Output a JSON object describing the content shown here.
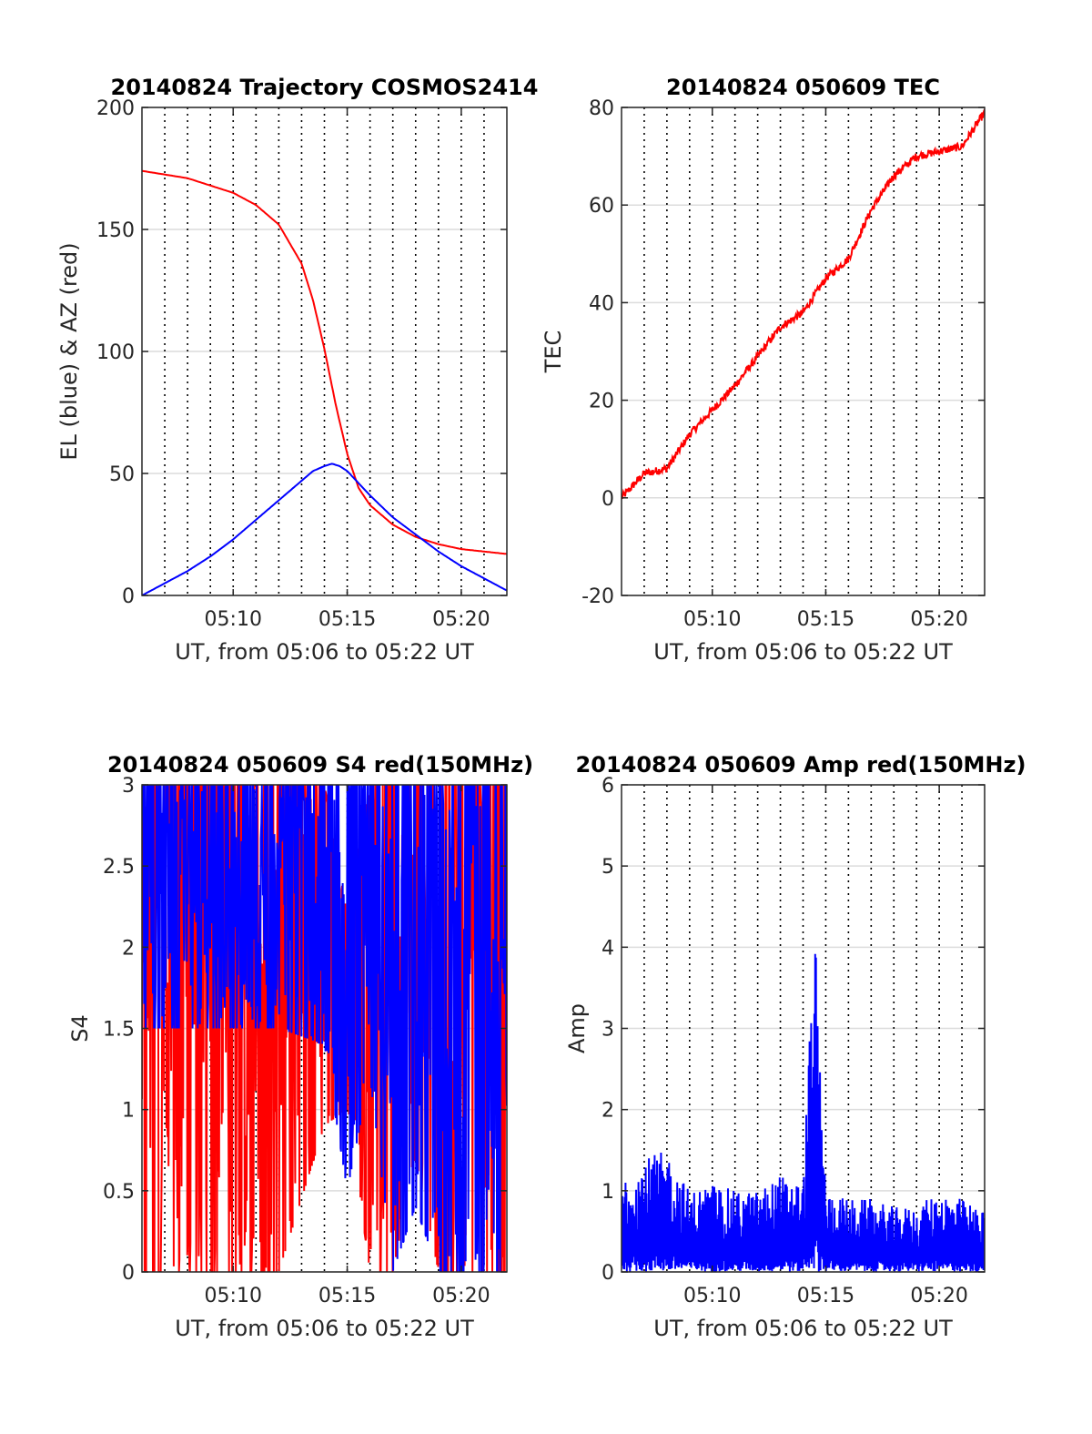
{
  "chart_data": [
    {
      "type": "line",
      "title": "20140824 Trajectory COSMOS2414",
      "xlabel": "UT, from 05:06 to 05:22 UT",
      "ylabel": "EL (blue) & AZ (red)",
      "xlim": [
        "05:06",
        "05:22"
      ],
      "ylim": [
        0,
        200
      ],
      "xticks": [
        "05:10",
        "05:15",
        "05:20"
      ],
      "yticks": [
        "0",
        "50",
        "100",
        "150",
        "200"
      ],
      "grid": "horizontal solid, vertical dotted each 1 min",
      "series": [
        {
          "color": "#ff0000",
          "x": [
            "05:06",
            "05:08",
            "05:10",
            "05:11",
            "05:12",
            "05:13",
            "05:13:30",
            "05:14",
            "05:14:30",
            "05:15",
            "05:15:30",
            "05:16",
            "05:17",
            "05:18",
            "05:19",
            "05:20",
            "05:21",
            "05:22"
          ],
          "values": [
            174,
            171,
            165,
            160,
            152,
            136,
            121,
            101,
            78,
            58,
            44,
            37,
            29,
            24,
            21,
            19,
            18,
            17
          ]
        },
        {
          "color": "#0000ff",
          "x": [
            "05:06",
            "05:07",
            "05:08",
            "05:09",
            "05:10",
            "05:11",
            "05:12",
            "05:13",
            "05:13:30",
            "05:14",
            "05:14:20",
            "05:14:40",
            "05:15",
            "05:15:30",
            "05:16",
            "05:17",
            "05:18",
            "05:19",
            "05:20",
            "05:21",
            "05:22"
          ],
          "values": [
            0,
            5,
            10,
            16,
            23,
            31,
            39,
            47,
            51,
            53,
            54,
            53,
            51,
            46,
            41,
            32,
            25,
            18,
            12,
            7,
            2
          ]
        }
      ]
    },
    {
      "type": "line",
      "title": "20140824 050609 TEC",
      "xlabel": "UT, from 05:06 to 05:22 UT",
      "ylabel": "TEC",
      "xlim": [
        "05:06",
        "05:22"
      ],
      "ylim": [
        -20,
        80
      ],
      "xticks": [
        "05:10",
        "05:15",
        "05:20"
      ],
      "yticks": [
        "-20",
        "0",
        "20",
        "40",
        "60",
        "80"
      ],
      "grid": "horizontal solid, vertical dotted each 1 min",
      "series": [
        {
          "color": "#ff0000",
          "x": [
            "05:06",
            "05:07",
            "05:08",
            "05:09",
            "05:10",
            "05:11",
            "05:12",
            "05:13",
            "05:14",
            "05:15",
            "05:16",
            "05:17",
            "05:18",
            "05:19",
            "05:20",
            "05:21",
            "05:22"
          ],
          "values": [
            0,
            5,
            6,
            13,
            18,
            23,
            29,
            35,
            38,
            45,
            49,
            59,
            66,
            70,
            71,
            72,
            79
          ]
        }
      ]
    },
    {
      "type": "line",
      "title": "20140824 050609 S4 red(150MHz)",
      "xlabel": "UT, from 05:06 to 05:22 UT",
      "ylabel": "S4",
      "xlim": [
        "05:06",
        "05:22"
      ],
      "ylim": [
        0,
        3
      ],
      "xticks": [
        "05:10",
        "05:15",
        "05:20"
      ],
      "yticks": [
        "0",
        "0.5",
        "1",
        "1.5",
        "2",
        "2.5",
        "3"
      ],
      "grid": "horizontal solid, vertical dotted each 1 min",
      "series": [
        {
          "color": "#ff0000",
          "x": [
            "05:06",
            "05:08",
            "05:10",
            "05:12",
            "05:14",
            "05:15",
            "05:16",
            "05:17",
            "05:18",
            "05:19",
            "05:20",
            "05:21",
            "05:22"
          ],
          "values_min": [
            0,
            0,
            0,
            0,
            0.9,
            1.0,
            0,
            0,
            0.7,
            0,
            0,
            0,
            0
          ],
          "values_max": [
            3,
            3,
            3,
            3,
            3,
            2.2,
            3,
            3,
            3,
            3,
            3,
            3,
            3
          ]
        },
        {
          "color": "#0000ff",
          "x": [
            "05:06",
            "05:08",
            "05:10",
            "05:12",
            "05:14",
            "05:15",
            "05:16",
            "05:17",
            "05:18",
            "05:19",
            "05:20",
            "05:21",
            "05:22"
          ],
          "values_min": [
            1.5,
            1.5,
            1.5,
            1.5,
            1.4,
            0.5,
            1.2,
            0,
            0.4,
            0,
            0,
            0,
            0
          ],
          "values_max": [
            3,
            3,
            3,
            3,
            3,
            3,
            3,
            3,
            3,
            3,
            3,
            3,
            3
          ]
        }
      ]
    },
    {
      "type": "line",
      "title": "20140824 050609 Amp red(150MHz)",
      "xlabel": "UT, from 05:06 to 05:22 UT",
      "ylabel": "Amp",
      "xlim": [
        "05:06",
        "05:22"
      ],
      "ylim": [
        0,
        6
      ],
      "xticks": [
        "05:10",
        "05:15",
        "05:20"
      ],
      "yticks": [
        "0",
        "1",
        "2",
        "3",
        "4",
        "5",
        "6"
      ],
      "grid": "horizontal solid, vertical dotted each 1 min",
      "series": [
        {
          "color": "#0000ff",
          "x": [
            "05:06",
            "05:07",
            "05:08",
            "05:09",
            "05:10",
            "05:11",
            "05:12",
            "05:13",
            "05:14",
            "05:14:30",
            "05:15",
            "05:16",
            "05:17",
            "05:18",
            "05:19",
            "05:20",
            "05:21",
            "05:22"
          ],
          "values_max": [
            1.25,
            1.4,
            1.5,
            1.0,
            1.1,
            1.0,
            1.0,
            1.2,
            1.1,
            4.35,
            1.0,
            0.9,
            0.9,
            0.8,
            0.8,
            1.0,
            0.9,
            0.75
          ]
        }
      ]
    }
  ]
}
